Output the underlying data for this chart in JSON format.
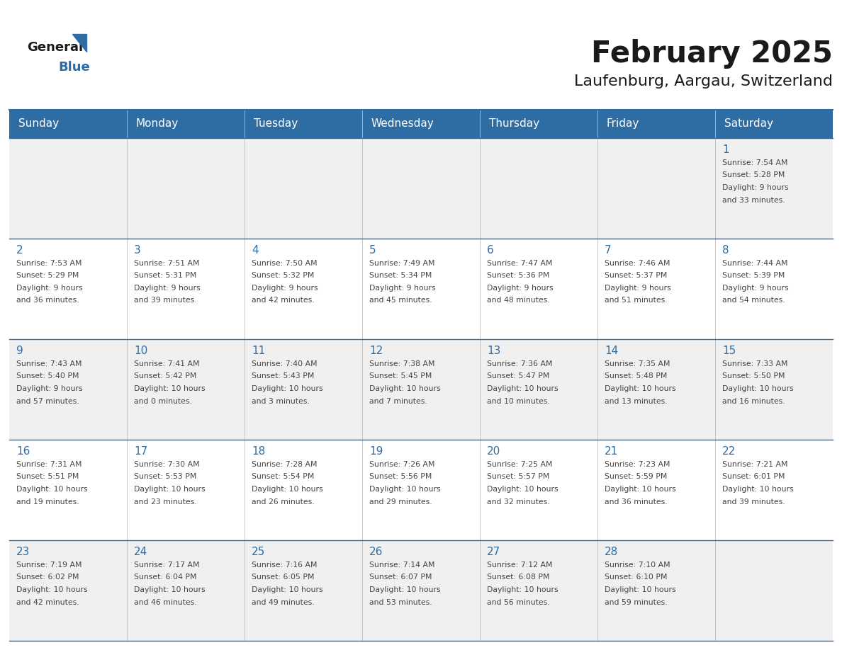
{
  "title": "February 2025",
  "subtitle": "Laufenburg, Aargau, Switzerland",
  "days_of_week": [
    "Sunday",
    "Monday",
    "Tuesday",
    "Wednesday",
    "Thursday",
    "Friday",
    "Saturday"
  ],
  "header_bg": "#2E6DA4",
  "header_text": "#FFFFFF",
  "cell_bg_light": "#F0F0F0",
  "cell_bg_white": "#FFFFFF",
  "line_color": "#2E6DA4",
  "day_num_color": "#2E6DA4",
  "text_color": "#444444",
  "calendar_data": [
    [
      {
        "day": null,
        "info": ""
      },
      {
        "day": null,
        "info": ""
      },
      {
        "day": null,
        "info": ""
      },
      {
        "day": null,
        "info": ""
      },
      {
        "day": null,
        "info": ""
      },
      {
        "day": null,
        "info": ""
      },
      {
        "day": 1,
        "info": "Sunrise: 7:54 AM\nSunset: 5:28 PM\nDaylight: 9 hours\nand 33 minutes."
      }
    ],
    [
      {
        "day": 2,
        "info": "Sunrise: 7:53 AM\nSunset: 5:29 PM\nDaylight: 9 hours\nand 36 minutes."
      },
      {
        "day": 3,
        "info": "Sunrise: 7:51 AM\nSunset: 5:31 PM\nDaylight: 9 hours\nand 39 minutes."
      },
      {
        "day": 4,
        "info": "Sunrise: 7:50 AM\nSunset: 5:32 PM\nDaylight: 9 hours\nand 42 minutes."
      },
      {
        "day": 5,
        "info": "Sunrise: 7:49 AM\nSunset: 5:34 PM\nDaylight: 9 hours\nand 45 minutes."
      },
      {
        "day": 6,
        "info": "Sunrise: 7:47 AM\nSunset: 5:36 PM\nDaylight: 9 hours\nand 48 minutes."
      },
      {
        "day": 7,
        "info": "Sunrise: 7:46 AM\nSunset: 5:37 PM\nDaylight: 9 hours\nand 51 minutes."
      },
      {
        "day": 8,
        "info": "Sunrise: 7:44 AM\nSunset: 5:39 PM\nDaylight: 9 hours\nand 54 minutes."
      }
    ],
    [
      {
        "day": 9,
        "info": "Sunrise: 7:43 AM\nSunset: 5:40 PM\nDaylight: 9 hours\nand 57 minutes."
      },
      {
        "day": 10,
        "info": "Sunrise: 7:41 AM\nSunset: 5:42 PM\nDaylight: 10 hours\nand 0 minutes."
      },
      {
        "day": 11,
        "info": "Sunrise: 7:40 AM\nSunset: 5:43 PM\nDaylight: 10 hours\nand 3 minutes."
      },
      {
        "day": 12,
        "info": "Sunrise: 7:38 AM\nSunset: 5:45 PM\nDaylight: 10 hours\nand 7 minutes."
      },
      {
        "day": 13,
        "info": "Sunrise: 7:36 AM\nSunset: 5:47 PM\nDaylight: 10 hours\nand 10 minutes."
      },
      {
        "day": 14,
        "info": "Sunrise: 7:35 AM\nSunset: 5:48 PM\nDaylight: 10 hours\nand 13 minutes."
      },
      {
        "day": 15,
        "info": "Sunrise: 7:33 AM\nSunset: 5:50 PM\nDaylight: 10 hours\nand 16 minutes."
      }
    ],
    [
      {
        "day": 16,
        "info": "Sunrise: 7:31 AM\nSunset: 5:51 PM\nDaylight: 10 hours\nand 19 minutes."
      },
      {
        "day": 17,
        "info": "Sunrise: 7:30 AM\nSunset: 5:53 PM\nDaylight: 10 hours\nand 23 minutes."
      },
      {
        "day": 18,
        "info": "Sunrise: 7:28 AM\nSunset: 5:54 PM\nDaylight: 10 hours\nand 26 minutes."
      },
      {
        "day": 19,
        "info": "Sunrise: 7:26 AM\nSunset: 5:56 PM\nDaylight: 10 hours\nand 29 minutes."
      },
      {
        "day": 20,
        "info": "Sunrise: 7:25 AM\nSunset: 5:57 PM\nDaylight: 10 hours\nand 32 minutes."
      },
      {
        "day": 21,
        "info": "Sunrise: 7:23 AM\nSunset: 5:59 PM\nDaylight: 10 hours\nand 36 minutes."
      },
      {
        "day": 22,
        "info": "Sunrise: 7:21 AM\nSunset: 6:01 PM\nDaylight: 10 hours\nand 39 minutes."
      }
    ],
    [
      {
        "day": 23,
        "info": "Sunrise: 7:19 AM\nSunset: 6:02 PM\nDaylight: 10 hours\nand 42 minutes."
      },
      {
        "day": 24,
        "info": "Sunrise: 7:17 AM\nSunset: 6:04 PM\nDaylight: 10 hours\nand 46 minutes."
      },
      {
        "day": 25,
        "info": "Sunrise: 7:16 AM\nSunset: 6:05 PM\nDaylight: 10 hours\nand 49 minutes."
      },
      {
        "day": 26,
        "info": "Sunrise: 7:14 AM\nSunset: 6:07 PM\nDaylight: 10 hours\nand 53 minutes."
      },
      {
        "day": 27,
        "info": "Sunrise: 7:12 AM\nSunset: 6:08 PM\nDaylight: 10 hours\nand 56 minutes."
      },
      {
        "day": 28,
        "info": "Sunrise: 7:10 AM\nSunset: 6:10 PM\nDaylight: 10 hours\nand 59 minutes."
      },
      {
        "day": null,
        "info": ""
      }
    ]
  ],
  "row_colors": [
    "#F0F0F0",
    "#FFFFFF",
    "#F0F0F0",
    "#FFFFFF",
    "#F0F0F0"
  ]
}
